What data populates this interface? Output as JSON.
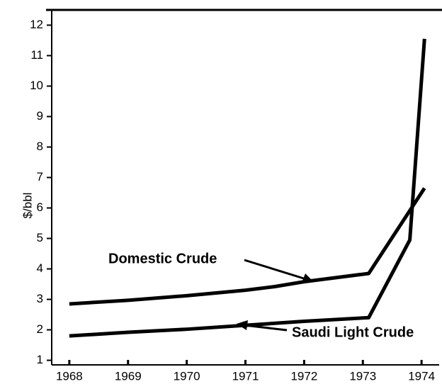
{
  "chart_data": {
    "type": "line",
    "y_label": "$/bbl",
    "xlim": [
      1967.7,
      1974.3
    ],
    "xticks": [
      1968,
      1969,
      1970,
      1971,
      1972,
      1973,
      1974
    ],
    "ylim": [
      0.85,
      12.5
    ],
    "yticks": [
      1,
      2,
      3,
      4,
      5,
      6,
      7,
      8,
      9,
      10,
      11,
      12
    ],
    "series": [
      {
        "name": "Domestic Crude",
        "color": "#000000",
        "x": [
          1968,
          1969,
          1970,
          1971,
          1971.5,
          1972,
          1973.1,
          1974.05
        ],
        "values": [
          2.85,
          2.97,
          3.12,
          3.3,
          3.42,
          3.58,
          3.85,
          6.65
        ]
      },
      {
        "name": "Saudi Light Crude",
        "color": "#000000",
        "x": [
          1968,
          1969,
          1970,
          1971,
          1972,
          1973.1,
          1973.8,
          1974.05
        ],
        "values": [
          1.8,
          1.92,
          2.02,
          2.15,
          2.28,
          2.4,
          4.95,
          11.55
        ]
      }
    ]
  }
}
